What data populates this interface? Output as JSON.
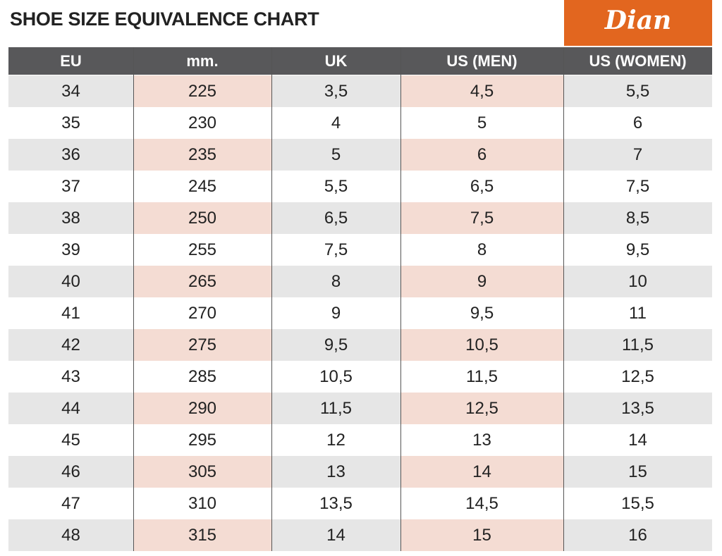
{
  "header": {
    "title": "SHOE SIZE EQUIVALENCE CHART",
    "logo": "Dian"
  },
  "table": {
    "columns": [
      "EU",
      "mm.",
      "UK",
      "US (MEN)",
      "US (WOMEN)"
    ],
    "rows": [
      [
        "34",
        "225",
        "3,5",
        "4,5",
        "5,5"
      ],
      [
        "35",
        "230",
        "4",
        "5",
        "6"
      ],
      [
        "36",
        "235",
        "5",
        "6",
        "7"
      ],
      [
        "37",
        "245",
        "5,5",
        "6,5",
        "7,5"
      ],
      [
        "38",
        "250",
        "6,5",
        "7,5",
        "8,5"
      ],
      [
        "39",
        "255",
        "7,5",
        "8",
        "9,5"
      ],
      [
        "40",
        "265",
        "8",
        "9",
        "10"
      ],
      [
        "41",
        "270",
        "9",
        "9,5",
        "11"
      ],
      [
        "42",
        "275",
        "9,5",
        "10,5",
        "11,5"
      ],
      [
        "43",
        "285",
        "10,5",
        "11,5",
        "12,5"
      ],
      [
        "44",
        "290",
        "11,5",
        "12,5",
        "13,5"
      ],
      [
        "45",
        "295",
        "12",
        "13",
        "14"
      ],
      [
        "46",
        "305",
        "13",
        "14",
        "15"
      ],
      [
        "47",
        "310",
        "13,5",
        "14,5",
        "15,5"
      ],
      [
        "48",
        "315",
        "14",
        "15",
        "16"
      ]
    ]
  }
}
